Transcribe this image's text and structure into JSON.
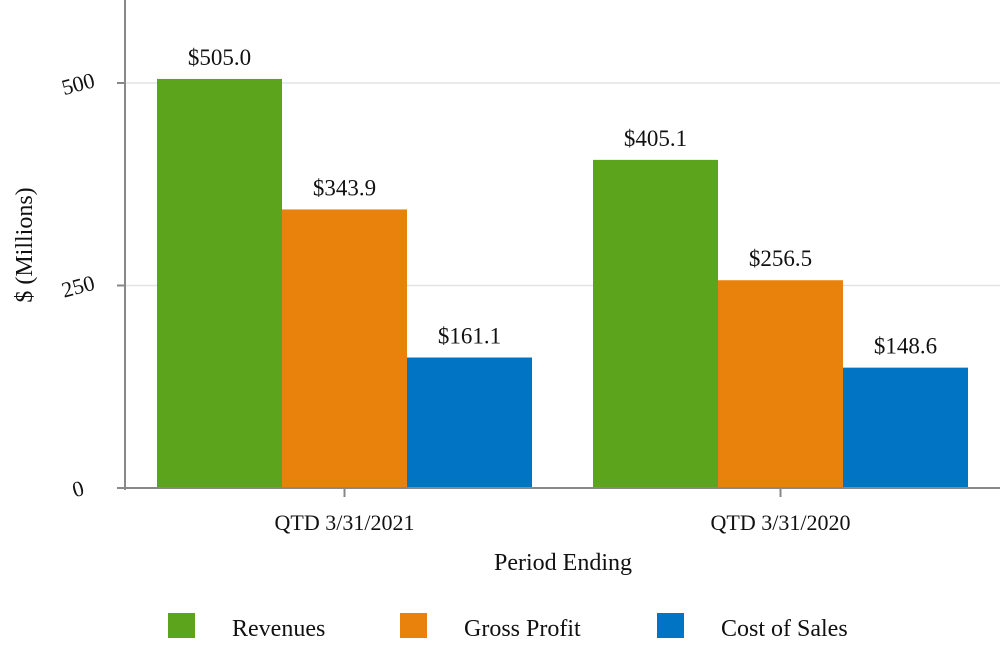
{
  "chart_data": {
    "type": "bar",
    "title": "",
    "xlabel": "Period Ending",
    "ylabel": "$ (Millions)",
    "ylim": [
      0,
      600
    ],
    "yticks": [
      0,
      250,
      500
    ],
    "ytick_labels": [
      "0",
      "250",
      "500"
    ],
    "categories": [
      "QTD 3/31/2021",
      "QTD 3/31/2020"
    ],
    "series": [
      {
        "name": "Revenues",
        "color": "#5ba41b",
        "values": [
          505.0,
          405.1
        ],
        "labels": [
          "$505.0",
          "$405.1"
        ]
      },
      {
        "name": "Gross Profit",
        "color": "#e8820c",
        "values": [
          343.9,
          256.5
        ],
        "labels": [
          "$343.9",
          "$256.5"
        ]
      },
      {
        "name": "Cost of Sales",
        "color": "#0174c3",
        "values": [
          161.1,
          148.6
        ],
        "labels": [
          "$161.1",
          "$148.6"
        ]
      }
    ],
    "grid": {
      "y": true,
      "x": false
    },
    "legend_position": "bottom"
  }
}
